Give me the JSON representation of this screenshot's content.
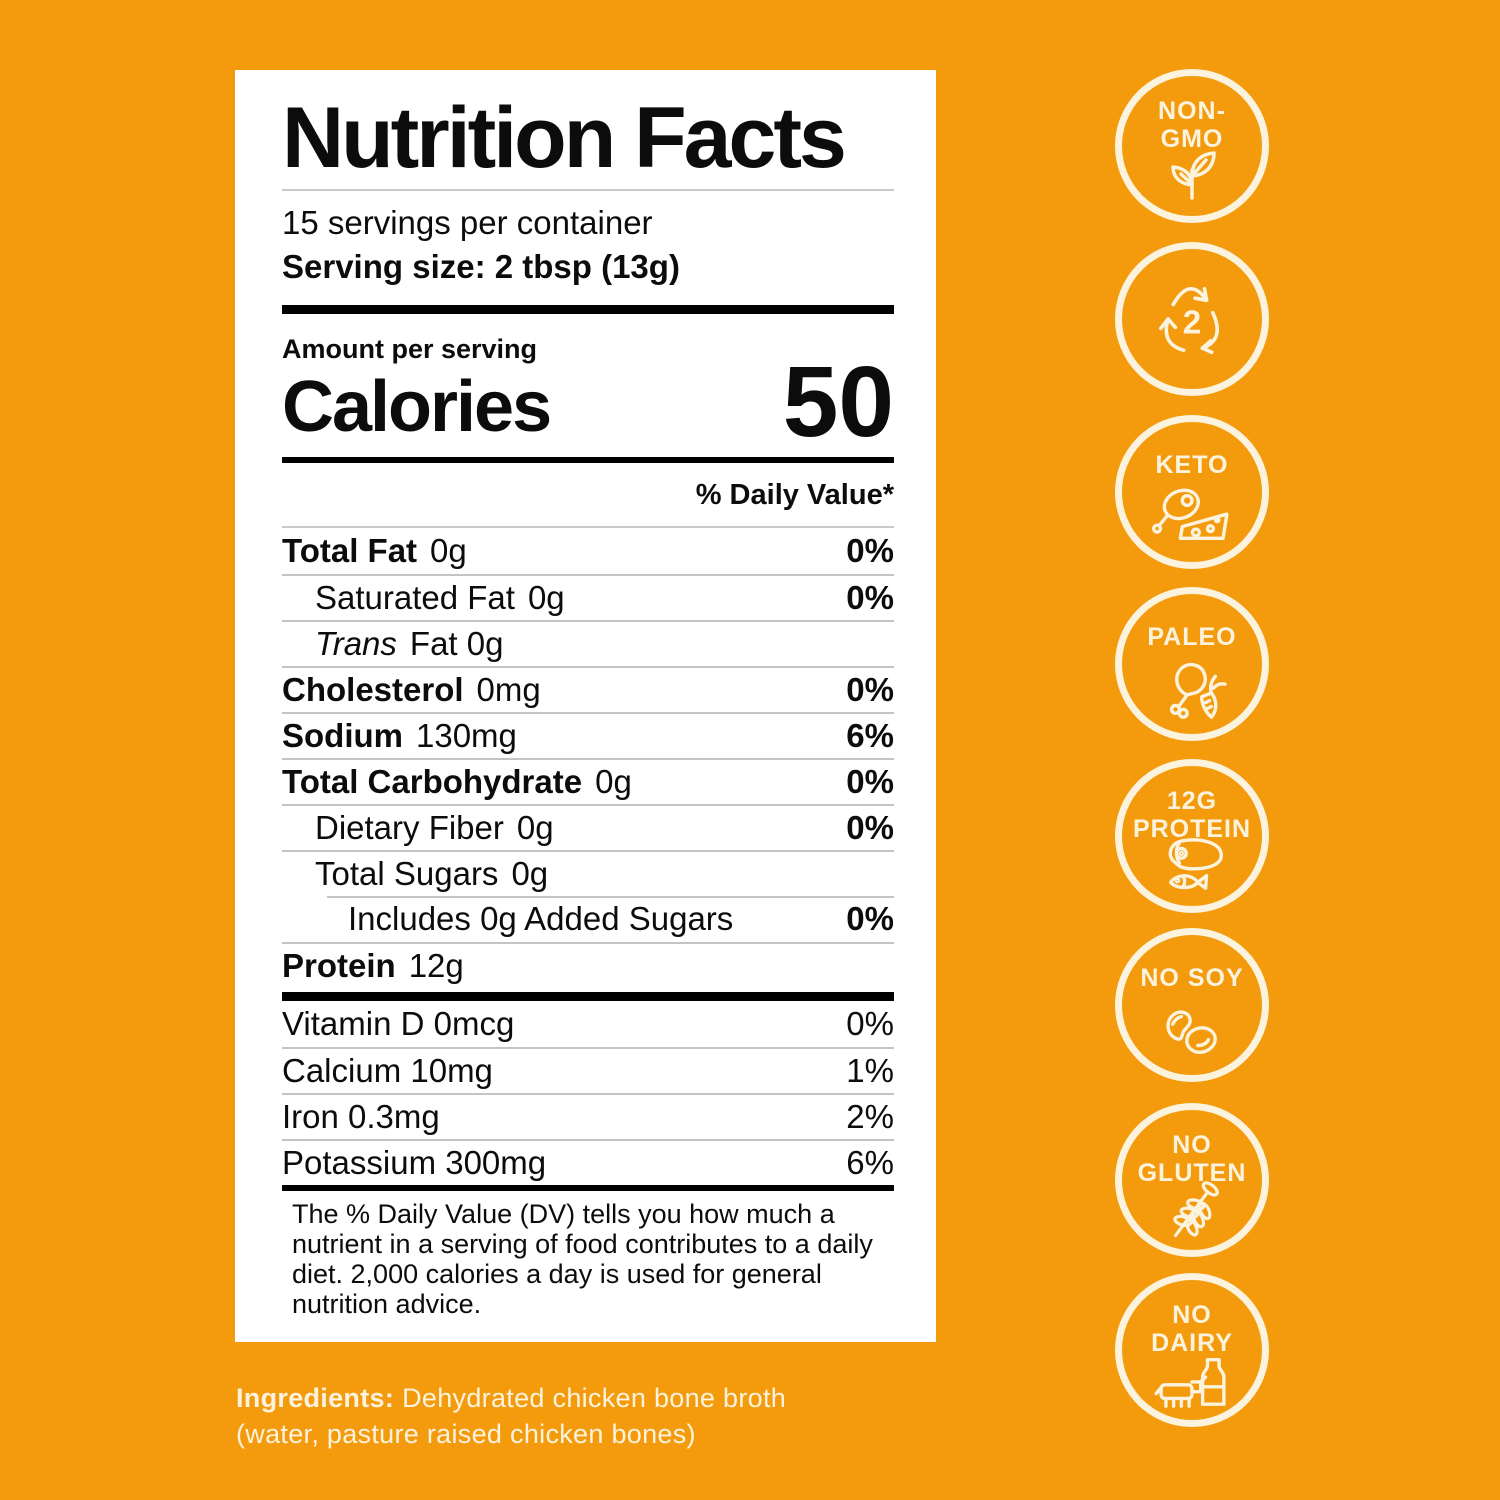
{
  "colors": {
    "background": "#F49B0D",
    "cream": "#FCF3DE",
    "label_background": "#FFFFFF",
    "label_text": "#0C0C0C",
    "hairline": "#C4C4C4"
  },
  "label": {
    "title": "Nutrition Facts",
    "servings_per_container": "15 servings per container",
    "serving_size": "Serving size: 2 tbsp (13g)",
    "amount_per_serving": "Amount per serving",
    "calories_label": "Calories",
    "calories_value": "50",
    "daily_value_header": "% Daily Value*",
    "rows": [
      {
        "name": "Total Fat",
        "amount": "0g",
        "dv": "0%",
        "style": "bold",
        "dv_bold": true,
        "indent": 0
      },
      {
        "name": "Saturated Fat",
        "amount": "0g",
        "dv": "0%",
        "style": "plain",
        "dv_bold": true,
        "indent": 1
      },
      {
        "name": "Trans",
        "amount": "Fat 0g",
        "dv": "",
        "style": "italic",
        "indent": 1
      },
      {
        "name": "Cholesterol",
        "amount": "0mg",
        "dv": "0%",
        "style": "bold",
        "dv_bold": true,
        "indent": 0
      },
      {
        "name": "Sodium",
        "amount": "130mg",
        "dv": "6%",
        "style": "bold",
        "dv_bold": true,
        "indent": 0
      },
      {
        "name": "Total Carbohydrate",
        "amount": "0g",
        "dv": "0%",
        "style": "bold",
        "dv_bold": true,
        "indent": 0
      },
      {
        "name": "Dietary Fiber",
        "amount": "0g",
        "dv": "0%",
        "style": "plain",
        "dv_bold": true,
        "indent": 1
      },
      {
        "name": "Total Sugars",
        "amount": "0g",
        "dv": "",
        "style": "plain",
        "indent": 1
      },
      {
        "name": "Includes 0g Added Sugars",
        "amount": "",
        "dv": "0%",
        "style": "plain",
        "dv_bold": true,
        "indent": 2,
        "line_indent": true
      },
      {
        "name": "Protein",
        "amount": "12g",
        "dv": "",
        "style": "bold",
        "indent": 0
      }
    ],
    "micronutrients": [
      {
        "name": "Vitamin D 0mcg",
        "dv": "0%"
      },
      {
        "name": "Calcium 10mg",
        "dv": "1%"
      },
      {
        "name": "Iron 0.3mg",
        "dv": "2%"
      },
      {
        "name": "Potassium 300mg",
        "dv": "6%"
      }
    ],
    "footnote": "The % Daily Value (DV) tells you how much a nutrient in a serving of food contributes to a daily diet. 2,000 calories a day is used for general nutrition advice."
  },
  "ingredients": {
    "label": "Ingredients:",
    "line1": "Dehydrated chicken bone broth",
    "line2": "(water, pasture raised chicken bones)"
  },
  "badges": [
    {
      "line1": "NON-",
      "line2": "GMO",
      "icon": "sprout-icon"
    },
    {
      "number": "2",
      "icon": "recycle-icon"
    },
    {
      "line1": "KETO",
      "icon": "ham-cheese-icon"
    },
    {
      "line1": "PALEO",
      "icon": "drumstick-carrot-icon"
    },
    {
      "line1": "12G",
      "line2": "PROTEIN",
      "icon": "meat-fish-icon"
    },
    {
      "line1": "NO SOY",
      "icon": "beans-icon"
    },
    {
      "line1": "NO",
      "line2": "GLUTEN",
      "icon": "wheat-icon"
    },
    {
      "line1": "NO",
      "line2": "DAIRY",
      "icon": "cow-milk-icon"
    }
  ]
}
